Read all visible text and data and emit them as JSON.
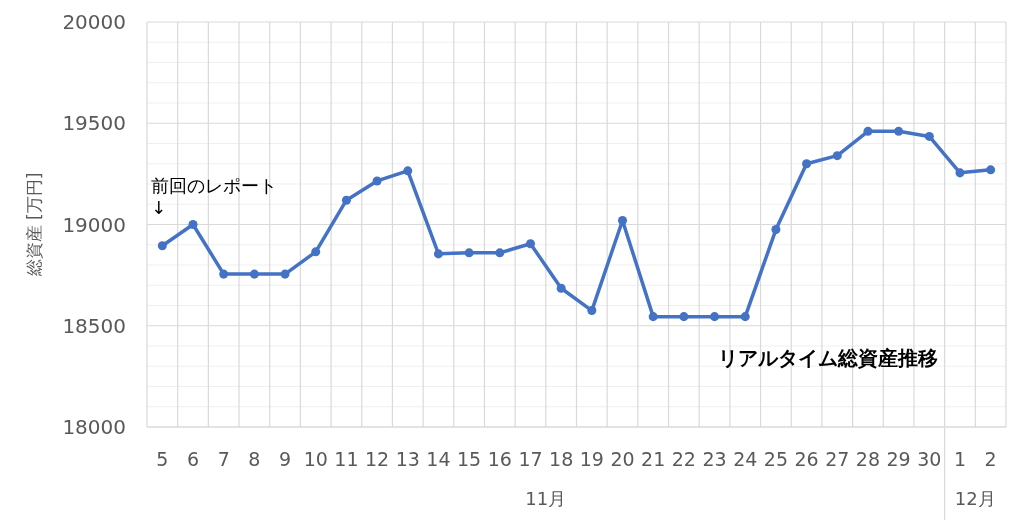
{
  "chart_data": {
    "type": "line",
    "title": "リアルタイム総資産推移",
    "ylabel": "総資産 [万円]",
    "categories": [
      "5",
      "6",
      "7",
      "8",
      "9",
      "10",
      "11",
      "12",
      "13",
      "14",
      "15",
      "16",
      "17",
      "18",
      "19",
      "20",
      "21",
      "22",
      "23",
      "24",
      "25",
      "26",
      "27",
      "28",
      "29",
      "30",
      "1",
      "2"
    ],
    "series": [
      {
        "color": "#4472c4",
        "values": [
          18895,
          19000,
          18755,
          18755,
          18755,
          18865,
          19120,
          19215,
          19265,
          18855,
          18860,
          18860,
          18905,
          18685,
          18575,
          19020,
          18545,
          18545,
          18545,
          18545,
          18975,
          19300,
          19340,
          19460,
          19460,
          19435,
          19255,
          19270
        ]
      }
    ],
    "ylim": [
      18000,
      20000
    ],
    "yticks": [
      18000,
      {
        "value": 18100,
        "label": null
      },
      {
        "value": 18200,
        "label": null
      },
      {
        "value": 18300,
        "label": null
      },
      {
        "value": 18400,
        "label": null
      },
      18500,
      {
        "value": 18600,
        "label": null
      },
      {
        "value": 18700,
        "label": null
      },
      {
        "value": 18800,
        "label": null
      },
      {
        "value": 18900,
        "label": null
      },
      19000,
      {
        "value": 19100,
        "label": null
      },
      {
        "value": 19200,
        "label": null
      },
      {
        "value": 19300,
        "label": null
      },
      {
        "value": 19400,
        "label": null
      },
      19500,
      {
        "value": 19600,
        "label": null
      },
      {
        "value": 19700,
        "label": null
      },
      {
        "value": 19800,
        "label": null
      },
      {
        "value": 19900,
        "label": null
      },
      20000
    ],
    "grid": true,
    "marker": "circle",
    "line_style": "solid",
    "annotations": [
      {
        "text": "前回のレポート\n↓",
        "x": "5",
        "y": 18895
      },
      "11月",
      "12月"
    ]
  }
}
